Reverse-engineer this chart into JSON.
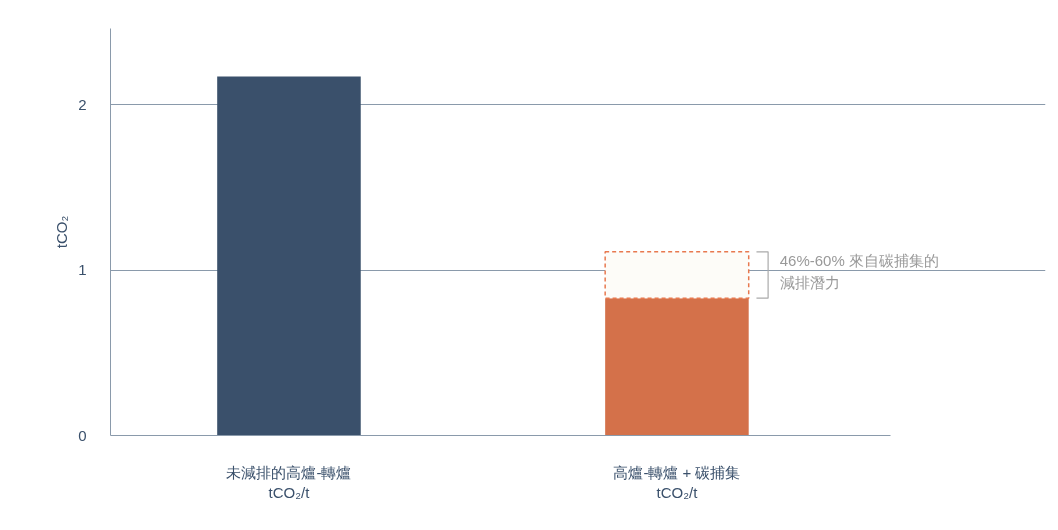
{
  "chart_data": {
    "type": "bar",
    "stacked": true,
    "categories": [
      "未減排的高爐-轉爐\ntCO₂/t",
      "高爐-轉爐 + 碳捕集\ntCO₂/t"
    ],
    "series": [
      {
        "colors": [
          "#3a506b",
          "#d4714a"
        ],
        "values": [
          2.17,
          0.83
        ]
      },
      {
        "color": "#fdfcf8",
        "values": [
          null,
          0.28
        ],
        "line_style": "dashed"
      }
    ],
    "ylabel": "tCO₂",
    "ylim": [
      0,
      2.46
    ],
    "yticks": [
      0,
      1,
      2
    ],
    "grid": "y",
    "annotations": [
      "46%-60% 來自碳捕集的減排潛力"
    ]
  }
}
